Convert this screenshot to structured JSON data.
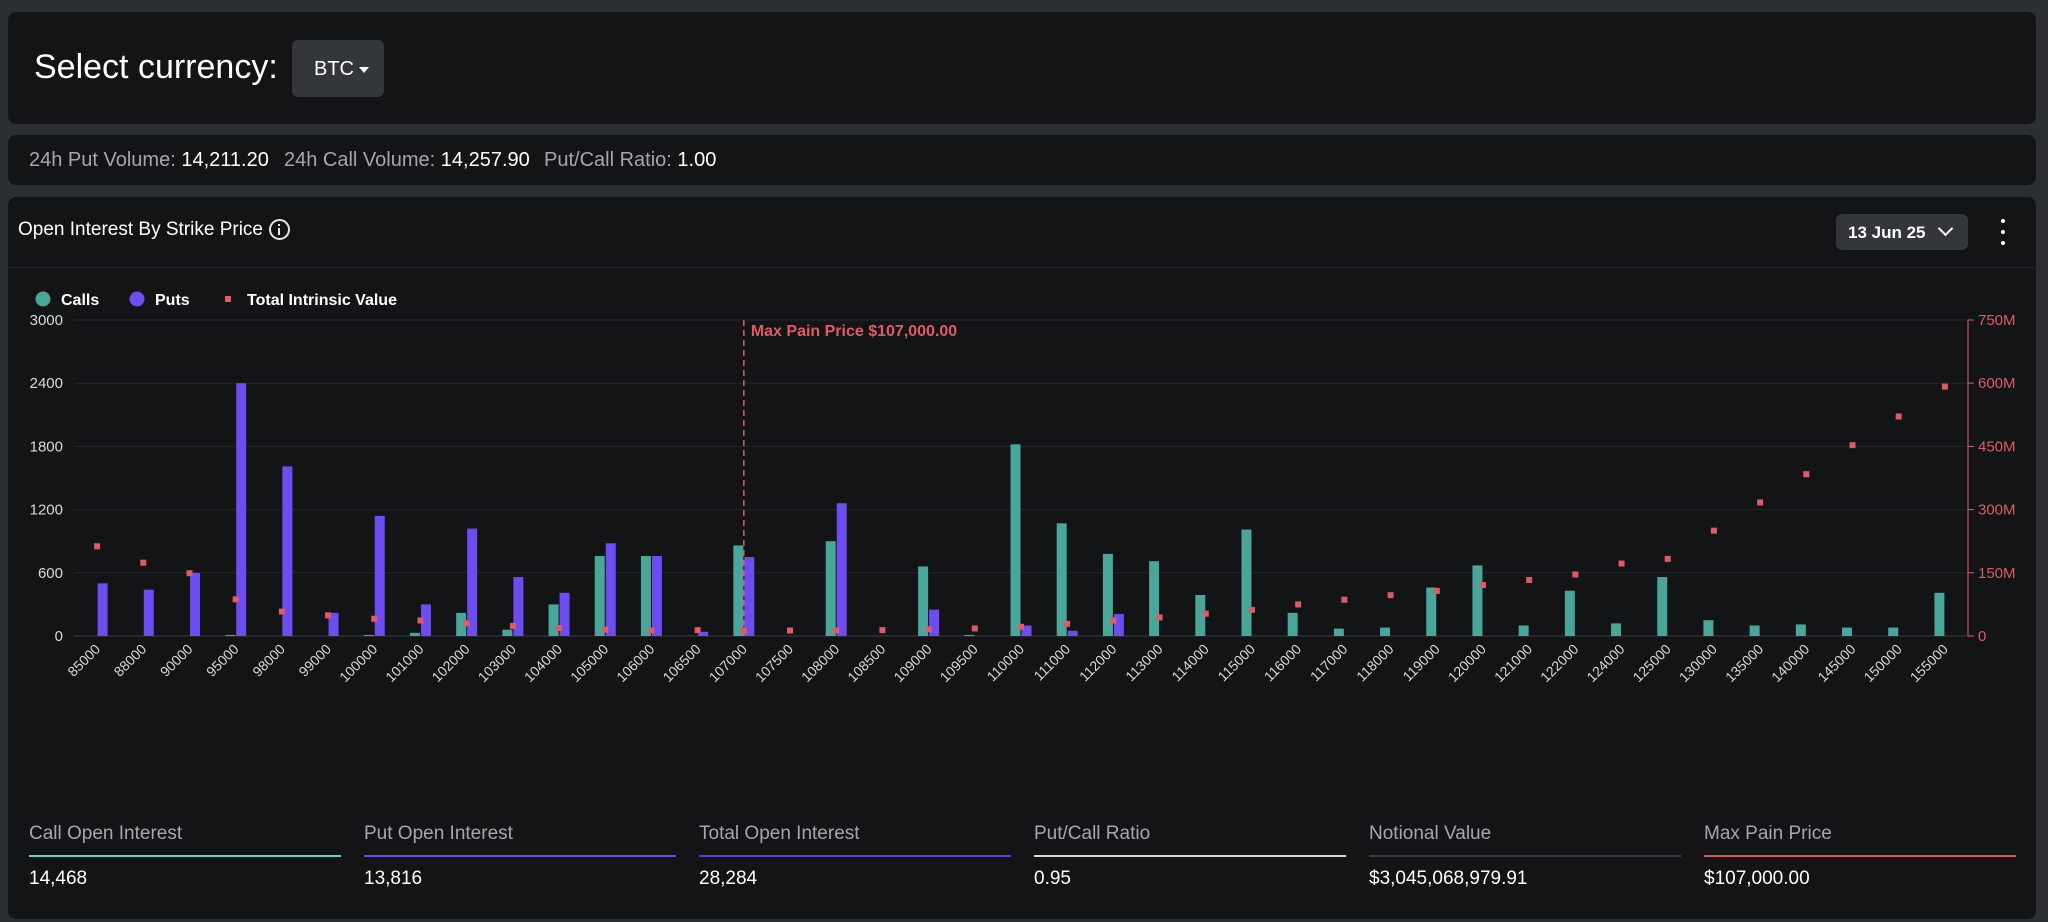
{
  "header": {
    "select_label": "Select currency:",
    "currency": "BTC"
  },
  "stats": {
    "put_volume_label": "24h Put Volume:",
    "put_volume": "14,211.20",
    "call_volume_label": "24h Call Volume:",
    "call_volume": "14,257.90",
    "ratio_label": "Put/Call Ratio:",
    "ratio": "1.00"
  },
  "card": {
    "title": "Open Interest By Strike Price",
    "expiry": "13 Jun 25",
    "info_icon": "info-icon",
    "menu_icon": "kebab-menu-icon"
  },
  "colors": {
    "calls": "#4aa59a",
    "puts": "#6d4cf0",
    "intrinsic": "#e05a67",
    "max_pain": "#e05a67"
  },
  "chart_data": {
    "type": "bar",
    "legend_position": "top-left",
    "grid": true,
    "categories": [
      "85000",
      "88000",
      "90000",
      "95000",
      "98000",
      "99000",
      "100000",
      "101000",
      "102000",
      "103000",
      "104000",
      "105000",
      "106000",
      "106500",
      "107000",
      "107500",
      "108000",
      "108500",
      "109000",
      "109500",
      "110000",
      "111000",
      "112000",
      "113000",
      "114000",
      "115000",
      "116000",
      "117000",
      "118000",
      "119000",
      "120000",
      "121000",
      "122000",
      "124000",
      "125000",
      "130000",
      "135000",
      "140000",
      "145000",
      "150000",
      "155000"
    ],
    "series": [
      {
        "name": "Calls",
        "axis": "left",
        "values": [
          0,
          0,
          0,
          10,
          0,
          0,
          10,
          30,
          220,
          60,
          300,
          760,
          760,
          0,
          860,
          0,
          900,
          0,
          660,
          10,
          1820,
          1070,
          780,
          710,
          390,
          1010,
          220,
          70,
          80,
          460,
          670,
          100,
          430,
          120,
          560,
          150,
          100,
          110,
          80,
          80,
          410
        ]
      },
      {
        "name": "Puts",
        "axis": "left",
        "values": [
          500,
          440,
          600,
          2400,
          1610,
          220,
          1140,
          300,
          1020,
          560,
          410,
          880,
          760,
          40,
          750,
          0,
          1260,
          0,
          250,
          0,
          100,
          50,
          210,
          0,
          0,
          0,
          0,
          0,
          0,
          0,
          0,
          0,
          0,
          0,
          0,
          0,
          0,
          0,
          0,
          0,
          0
        ]
      },
      {
        "name": "Total Intrinsic Value",
        "axis": "right",
        "type": "scatter",
        "values": [
          213,
          174,
          149,
          87,
          58,
          49,
          41,
          37,
          30,
          24,
          19,
          15,
          13,
          14,
          13,
          13,
          13,
          14,
          16,
          18,
          22,
          29,
          37,
          44,
          53,
          62,
          75,
          86,
          97,
          107,
          121,
          133,
          146,
          172,
          183,
          250,
          317,
          384,
          453,
          521,
          592
        ]
      }
    ],
    "left_axis": {
      "ticks": [
        "0",
        "600",
        "1200",
        "1800",
        "2400",
        "3000"
      ],
      "ylim": [
        0,
        3000
      ]
    },
    "right_axis": {
      "ticks": [
        "0",
        "150M",
        "300M",
        "450M",
        "600M",
        "750M"
      ],
      "ylim": [
        0,
        750
      ],
      "unit": "M"
    },
    "max_pain": {
      "strike": "107000",
      "label": "Max Pain Price $107,000.00"
    }
  },
  "summary": [
    {
      "label": "Call Open Interest",
      "value": "14,468",
      "color": "#5fd6c2"
    },
    {
      "label": "Put Open Interest",
      "value": "13,816",
      "color": "#6d4cf0"
    },
    {
      "label": "Total Open Interest",
      "value": "28,284",
      "color": "#5a40d8"
    },
    {
      "label": "Put/Call Ratio",
      "value": "0.95",
      "color": "#d9d9d9"
    },
    {
      "label": "Notional Value",
      "value": "$3,045,068,979.91",
      "color": "#3a3d42"
    },
    {
      "label": "Max Pain Price",
      "value": "$107,000.00",
      "color": "#e0515f"
    }
  ]
}
